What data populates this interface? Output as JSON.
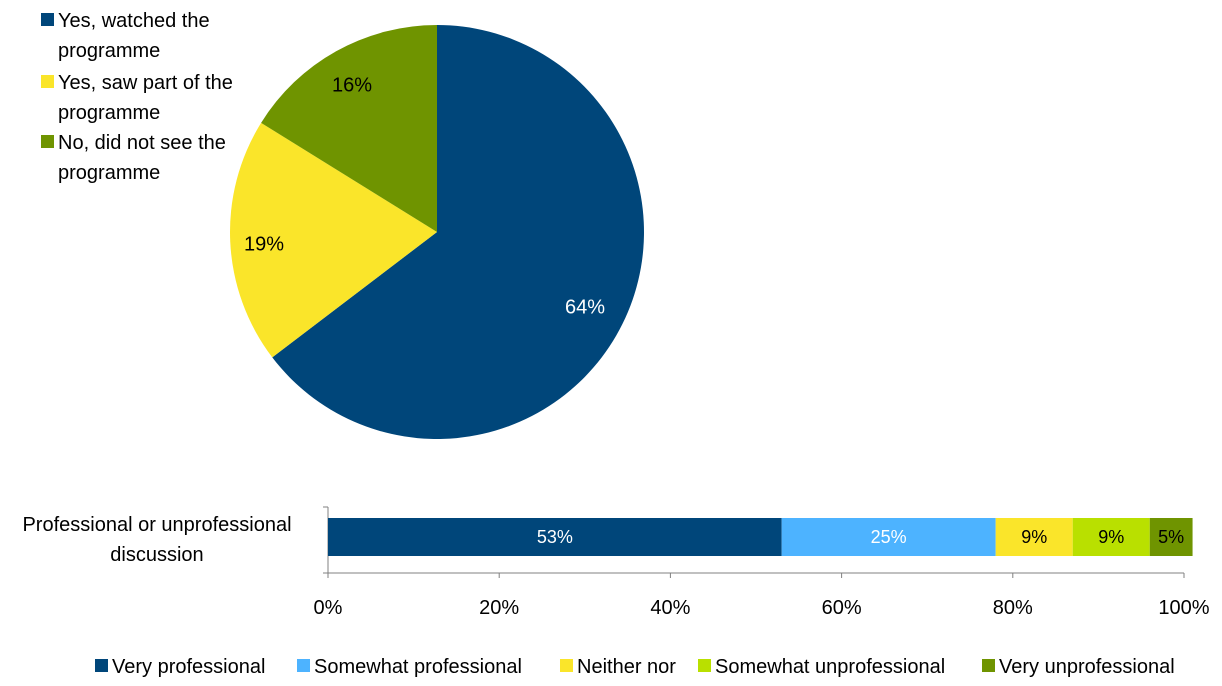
{
  "colors": {
    "dark_blue": "#00467a",
    "light_blue": "#4db3ff",
    "yellow": "#fae52a",
    "light_green": "#b9e000",
    "olive_green": "#6f9400",
    "axis": "#808080"
  },
  "chart_data": [
    {
      "type": "pie",
      "slices": [
        {
          "label": "Yes, watched the programme",
          "value": 64,
          "data_label": "64%",
          "color": "#00467a",
          "label_color": "#ffffff"
        },
        {
          "label": "Yes, saw part of the programme",
          "value": 19,
          "data_label": "19%",
          "color": "#fae52a",
          "label_color": "#000000"
        },
        {
          "label": "No, did not see the programme",
          "value": 16,
          "data_label": "16%",
          "color": "#6f9400",
          "label_color": "#000000"
        }
      ],
      "legend_position": "top-left",
      "legend_lines": [
        [
          "Yes, watched the",
          "programme"
        ],
        [
          "Yes, saw part of the",
          "programme"
        ],
        [
          "No, did not see the",
          "programme"
        ]
      ]
    },
    {
      "type": "bar",
      "orientation": "horizontal",
      "stacked": true,
      "category_lines": [
        "Professional or unprofessional",
        "discussion"
      ],
      "categories": [
        "Professional or unprofessional discussion"
      ],
      "xlim": [
        0,
        100
      ],
      "x_ticks": [
        "0%",
        "20%",
        "40%",
        "60%",
        "80%",
        "100%"
      ],
      "grid": false,
      "legend_position": "bottom",
      "series": [
        {
          "name": "Very professional",
          "values": [
            53
          ],
          "data_label": "53%",
          "color": "#00467a",
          "label_color": "#ffffff"
        },
        {
          "name": "Somewhat professional",
          "values": [
            25
          ],
          "data_label": "25%",
          "color": "#4db3ff",
          "label_color": "#ffffff"
        },
        {
          "name": "Neither nor",
          "values": [
            9
          ],
          "data_label": "9%",
          "color": "#fae52a",
          "label_color": "#000000"
        },
        {
          "name": "Somewhat unprofessional",
          "values": [
            9
          ],
          "data_label": "9%",
          "color": "#b9e000",
          "label_color": "#000000"
        },
        {
          "name": "Very unprofessional",
          "values": [
            5
          ],
          "data_label": "5%",
          "color": "#6f9400",
          "label_color": "#000000"
        }
      ]
    }
  ]
}
